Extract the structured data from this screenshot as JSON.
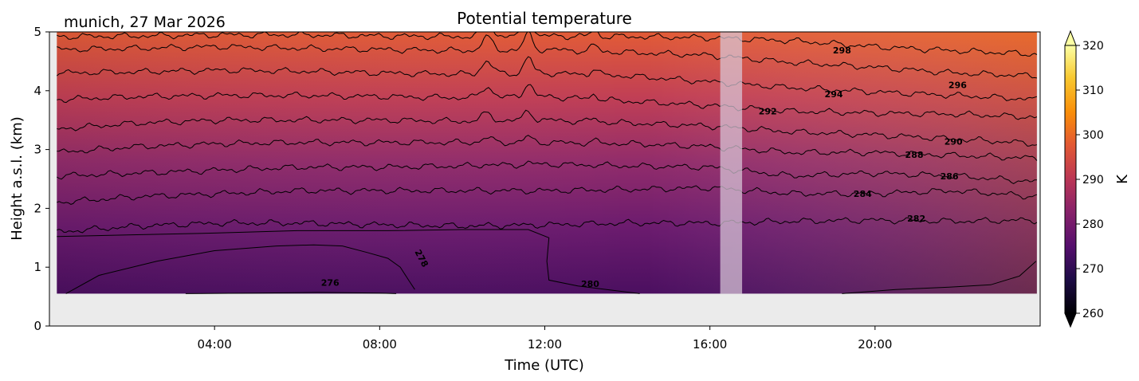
{
  "figure": {
    "location_label": "munich, 27 Mar 2026"
  },
  "chart_data": {
    "type": "heatmap",
    "title": "Potential temperature",
    "xlabel": "Time (UTC)",
    "ylabel": "Height a.s.l. (km)",
    "xlim_hours": [
      0,
      24
    ],
    "ylim_km": [
      0,
      5
    ],
    "x_ticks": [
      {
        "hour": 4,
        "label": "04:00"
      },
      {
        "hour": 8,
        "label": "08:00"
      },
      {
        "hour": 12,
        "label": "12:00"
      },
      {
        "hour": 16,
        "label": "16:00"
      },
      {
        "hour": 20,
        "label": "20:00"
      }
    ],
    "y_ticks": [
      {
        "value": 0,
        "label": "0"
      },
      {
        "value": 1,
        "label": "1"
      },
      {
        "value": 2,
        "label": "2"
      },
      {
        "value": 3,
        "label": "3"
      },
      {
        "value": 4,
        "label": "4"
      },
      {
        "value": 5,
        "label": "5"
      }
    ],
    "data_extent": {
      "time_start_hour": 0.18,
      "time_end_hour": 23.92,
      "height_bottom_km": 0.55,
      "height_top_km": 5
    },
    "data_gap": {
      "start_hour": 16.25,
      "end_hour": 16.78
    },
    "colormap": "inferno",
    "colorbar": {
      "label": "K",
      "range": [
        260,
        320
      ],
      "ticks": [
        "260",
        "270",
        "280",
        "290",
        "300",
        "310",
        "320"
      ],
      "extend": "both"
    },
    "field_colors": {
      "bottom_left": "#4f1166",
      "bottom_right": "#6e1b72",
      "top_left": "#d14a45",
      "top_right": "#f07a1f"
    },
    "contour_levels": [
      276,
      278,
      280,
      282,
      284,
      286,
      288,
      290,
      292,
      294,
      296,
      298
    ],
    "contours": [
      {
        "level": 282,
        "heights_km": [
          1.6,
          1.7,
          1.75,
          1.75,
          1.72,
          1.7,
          1.72,
          1.75,
          1.75,
          1.78,
          1.8,
          1.78,
          1.8
        ]
      },
      {
        "level": 284,
        "heights_km": [
          2.1,
          2.2,
          2.25,
          2.3,
          2.3,
          2.3,
          2.3,
          2.32,
          2.35,
          2.25,
          2.25,
          2.3,
          2.2
        ]
      },
      {
        "level": 286,
        "heights_km": [
          2.55,
          2.6,
          2.65,
          2.7,
          2.7,
          2.72,
          2.75,
          2.72,
          2.7,
          2.55,
          2.6,
          2.55,
          2.45
        ]
      },
      {
        "level": 288,
        "heights_km": [
          2.95,
          3.05,
          3.1,
          3.12,
          3.12,
          3.12,
          3.12,
          3.1,
          3.05,
          2.95,
          2.95,
          2.9,
          2.85
        ]
      },
      {
        "level": 290,
        "heights_km": [
          3.35,
          3.45,
          3.5,
          3.5,
          3.5,
          3.48,
          3.5,
          3.45,
          3.4,
          3.3,
          3.25,
          3.18,
          3.1
        ]
      },
      {
        "level": 292,
        "heights_km": [
          3.85,
          3.9,
          3.92,
          3.92,
          3.9,
          3.88,
          3.9,
          3.82,
          3.75,
          3.65,
          3.62,
          3.6,
          3.55
        ]
      },
      {
        "level": 294,
        "heights_km": [
          4.3,
          4.32,
          4.35,
          4.33,
          4.3,
          4.28,
          4.3,
          4.25,
          4.15,
          4.05,
          3.98,
          3.92,
          3.85
        ]
      },
      {
        "level": 296,
        "heights_km": [
          4.7,
          4.72,
          4.75,
          4.72,
          4.7,
          4.68,
          4.7,
          4.65,
          4.6,
          4.48,
          4.4,
          4.3,
          4.25
        ]
      },
      {
        "level": 298,
        "heights_km": [
          4.92,
          4.93,
          4.95,
          4.95,
          4.93,
          4.92,
          4.93,
          4.92,
          4.9,
          4.85,
          4.75,
          4.68,
          4.62
        ]
      }
    ],
    "contour_276_points": [
      [
        0.4,
        0.55
      ],
      [
        1.2,
        0.86
      ],
      [
        2.6,
        1.1
      ],
      [
        4,
        1.28
      ],
      [
        5.5,
        1.36
      ],
      [
        6.4,
        1.38
      ],
      [
        7.1,
        1.36
      ],
      [
        7.7,
        1.25
      ],
      [
        8.2,
        1.15
      ],
      [
        8.5,
        1.0
      ],
      [
        8.7,
        0.78
      ],
      [
        8.85,
        0.62
      ]
    ],
    "contour_276b_points": [
      [
        3.3,
        0.55
      ],
      [
        5,
        0.56
      ],
      [
        6.5,
        0.57
      ],
      [
        8,
        0.56
      ],
      [
        8.4,
        0.55
      ]
    ],
    "contour_280_points": [
      [
        14.3,
        0.55
      ],
      [
        12.8,
        0.68
      ],
      [
        12.1,
        0.78
      ],
      [
        12.05,
        1.1
      ],
      [
        12.1,
        1.5
      ],
      [
        11.6,
        1.64
      ],
      [
        10,
        1.64
      ],
      [
        8.2,
        1.62
      ],
      [
        6,
        1.62
      ],
      [
        4,
        1.58
      ],
      [
        2,
        1.55
      ],
      [
        0.18,
        1.52
      ]
    ],
    "contour_280b_points": [
      [
        19.2,
        0.55
      ],
      [
        20.5,
        0.62
      ],
      [
        21.8,
        0.66
      ],
      [
        22.8,
        0.7
      ],
      [
        23.5,
        0.85
      ],
      [
        23.9,
        1.1
      ]
    ],
    "contour_labels": [
      {
        "text": "276",
        "hour": 6.8,
        "km": 0.74
      },
      {
        "text": "278",
        "hour": 8.95,
        "km": 1.18
      },
      {
        "text": "280",
        "hour": 13.1,
        "km": 0.72
      },
      {
        "text": "282",
        "hour": 21.0,
        "km": 1.83
      },
      {
        "text": "284",
        "hour": 19.7,
        "km": 2.25
      },
      {
        "text": "286",
        "hour": 21.8,
        "km": 2.55
      },
      {
        "text": "288",
        "hour": 20.95,
        "km": 2.91
      },
      {
        "text": "290",
        "hour": 21.9,
        "km": 3.14
      },
      {
        "text": "292",
        "hour": 17.4,
        "km": 3.65
      },
      {
        "text": "294",
        "hour": 19.0,
        "km": 3.94
      },
      {
        "text": "296",
        "hour": 22.0,
        "km": 4.1
      },
      {
        "text": "298",
        "hour": 19.2,
        "km": 4.69
      }
    ]
  }
}
